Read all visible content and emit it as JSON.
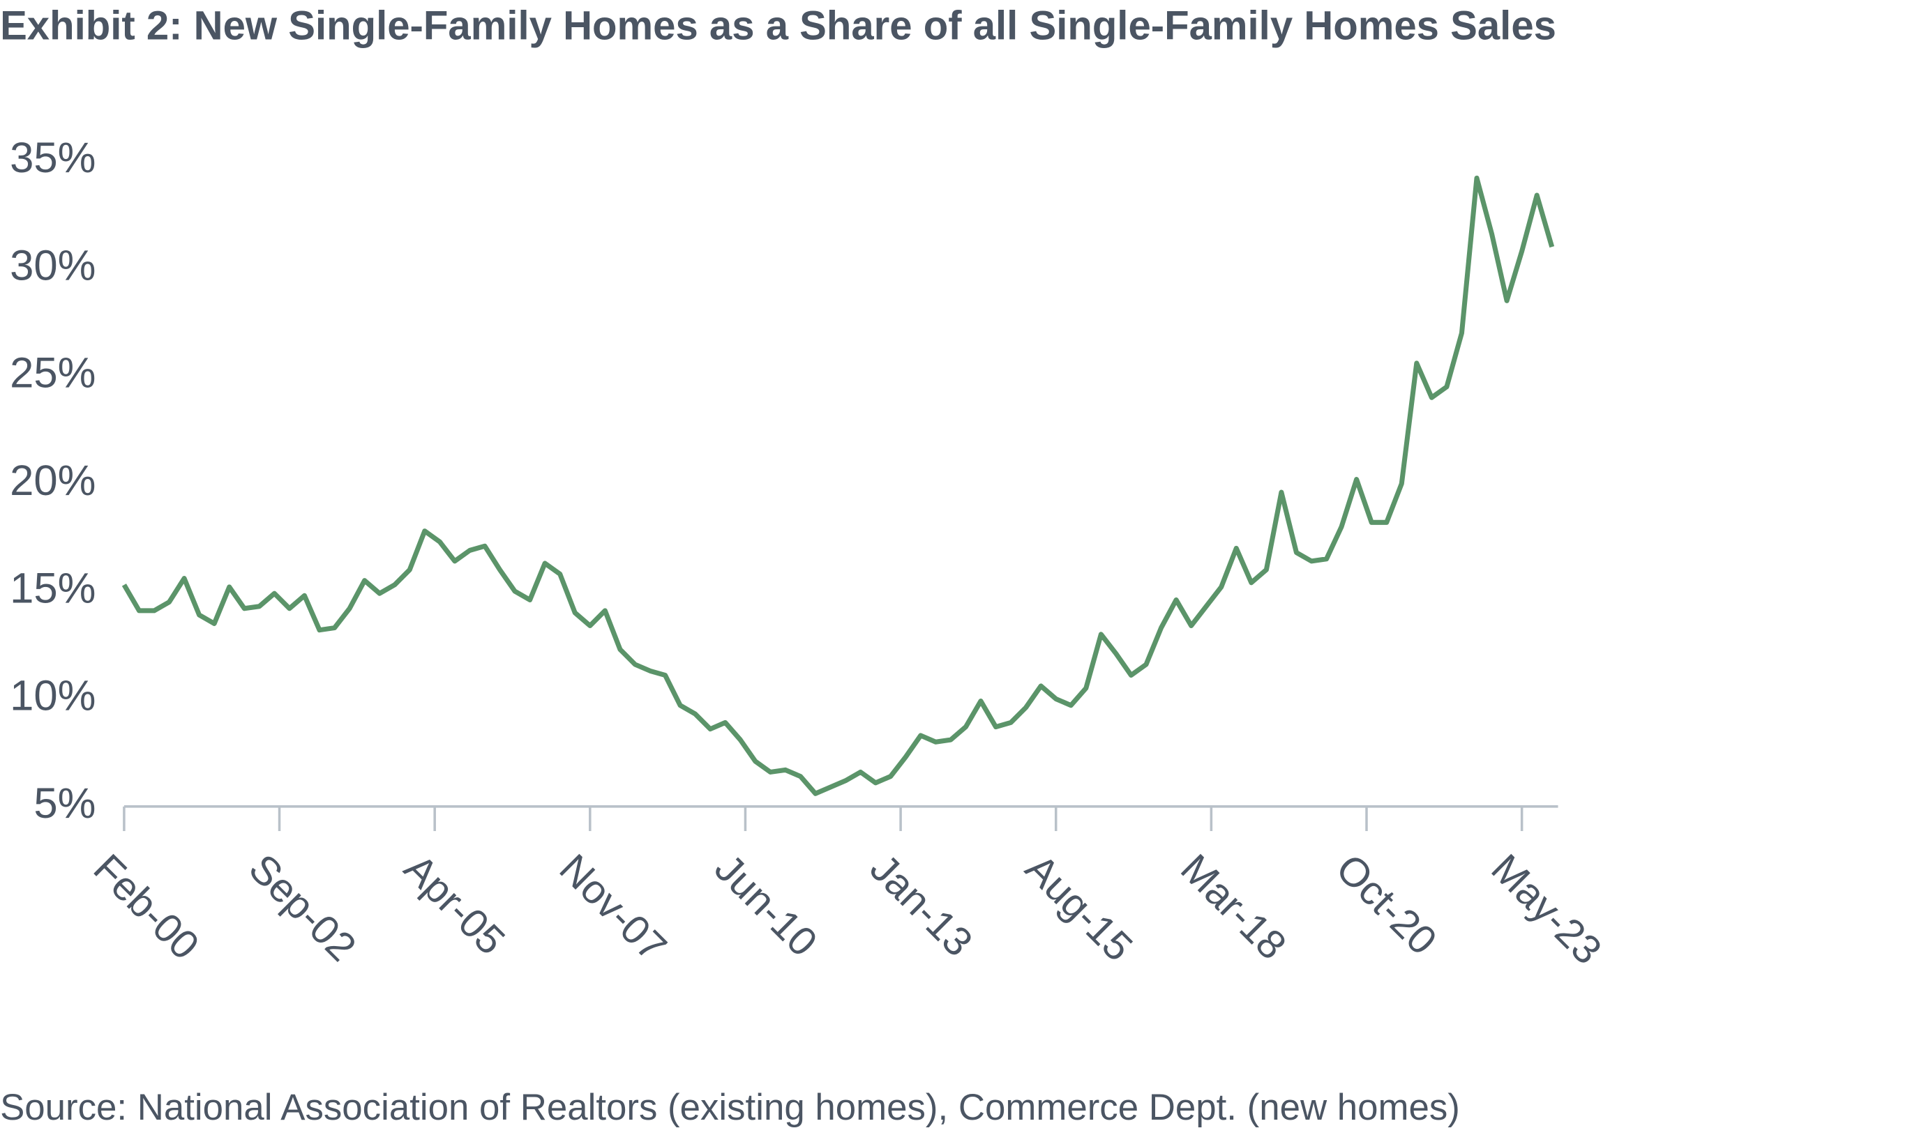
{
  "chart_data": {
    "type": "line",
    "title": "Exhibit 2: New Single-Family Homes as a Share of all Single-Family Homes Sales",
    "source": "Source: National Association of Realtors (existing homes), Commerce Dept. (new homes)",
    "x": [
      "Feb-00",
      "May-00",
      "Aug-00",
      "Nov-00",
      "Feb-01",
      "May-01",
      "Aug-01",
      "Nov-01",
      "Feb-02",
      "May-02",
      "Aug-02",
      "Nov-02",
      "Feb-03",
      "May-03",
      "Aug-03",
      "Nov-03",
      "Feb-04",
      "May-04",
      "Aug-04",
      "Nov-04",
      "Feb-05",
      "May-05",
      "Aug-05",
      "Nov-05",
      "Feb-06",
      "May-06",
      "Aug-06",
      "Nov-06",
      "Feb-07",
      "May-07",
      "Aug-07",
      "Nov-07",
      "Feb-08",
      "May-08",
      "Aug-08",
      "Nov-08",
      "Feb-09",
      "May-09",
      "Aug-09",
      "Nov-09",
      "Feb-10",
      "May-10",
      "Aug-10",
      "Nov-10",
      "Feb-11",
      "May-11",
      "Aug-11",
      "Nov-11",
      "Feb-12",
      "May-12",
      "Aug-12",
      "Nov-12",
      "Feb-13",
      "May-13",
      "Aug-13",
      "Nov-13",
      "Feb-14",
      "May-14",
      "Aug-14",
      "Nov-14",
      "Feb-15",
      "May-15",
      "Aug-15",
      "Nov-15",
      "Feb-16",
      "May-16",
      "Aug-16",
      "Nov-16",
      "Feb-17",
      "May-17",
      "Aug-17",
      "Nov-17",
      "Feb-18",
      "May-18",
      "Aug-18",
      "Nov-18",
      "Feb-19",
      "May-19",
      "Aug-19",
      "Nov-19",
      "Feb-20",
      "May-20",
      "Aug-20",
      "Nov-20",
      "Feb-21",
      "May-21",
      "Aug-21",
      "Nov-21",
      "Feb-22",
      "May-22",
      "Aug-22",
      "Nov-22",
      "Feb-23",
      "May-23",
      "Aug-23",
      "Nov-23"
    ],
    "series": [
      {
        "name": "New home share",
        "color": "#5b9469",
        "values": [
          15.3,
          14.1,
          14.1,
          14.5,
          15.6,
          13.9,
          13.5,
          15.2,
          14.2,
          14.3,
          14.9,
          14.2,
          14.8,
          13.2,
          13.3,
          14.2,
          15.5,
          14.9,
          15.3,
          16.0,
          17.8,
          17.3,
          16.4,
          16.9,
          17.1,
          16.0,
          15.0,
          14.6,
          16.3,
          15.8,
          14.0,
          13.4,
          14.1,
          12.3,
          11.6,
          11.3,
          11.1,
          9.7,
          9.3,
          8.6,
          8.9,
          8.1,
          7.1,
          6.6,
          6.7,
          6.4,
          5.6,
          5.9,
          6.2,
          6.6,
          6.1,
          6.4,
          7.3,
          8.3,
          8.0,
          8.1,
          8.7,
          9.9,
          8.7,
          8.9,
          9.6,
          10.6,
          10.0,
          9.7,
          10.5,
          13.0,
          12.1,
          11.1,
          11.6,
          13.3,
          14.6,
          13.4,
          14.3,
          15.2,
          17.0,
          15.4,
          16.0,
          19.6,
          16.8,
          16.4,
          16.5,
          18.0,
          20.2,
          18.2,
          18.2,
          20.0,
          25.6,
          24.0,
          24.5,
          27.0,
          34.2,
          31.6,
          28.5,
          30.8,
          33.4,
          31.0
        ]
      }
    ],
    "ylim": [
      5,
      35
    ],
    "yticks": [
      {
        "value": 5,
        "label": "5%"
      },
      {
        "value": 10,
        "label": "10%"
      },
      {
        "value": 15,
        "label": "15%"
      },
      {
        "value": 20,
        "label": "20%"
      },
      {
        "value": 25,
        "label": "25%"
      },
      {
        "value": 30,
        "label": "30%"
      },
      {
        "value": 35,
        "label": "35%"
      }
    ],
    "xticks": [
      "Feb-00",
      "Sep-02",
      "Apr-05",
      "Nov-07",
      "Jun-10",
      "Jan-13",
      "Aug-15",
      "Mar-18",
      "Oct-20",
      "May-23"
    ],
    "grid": false
  }
}
